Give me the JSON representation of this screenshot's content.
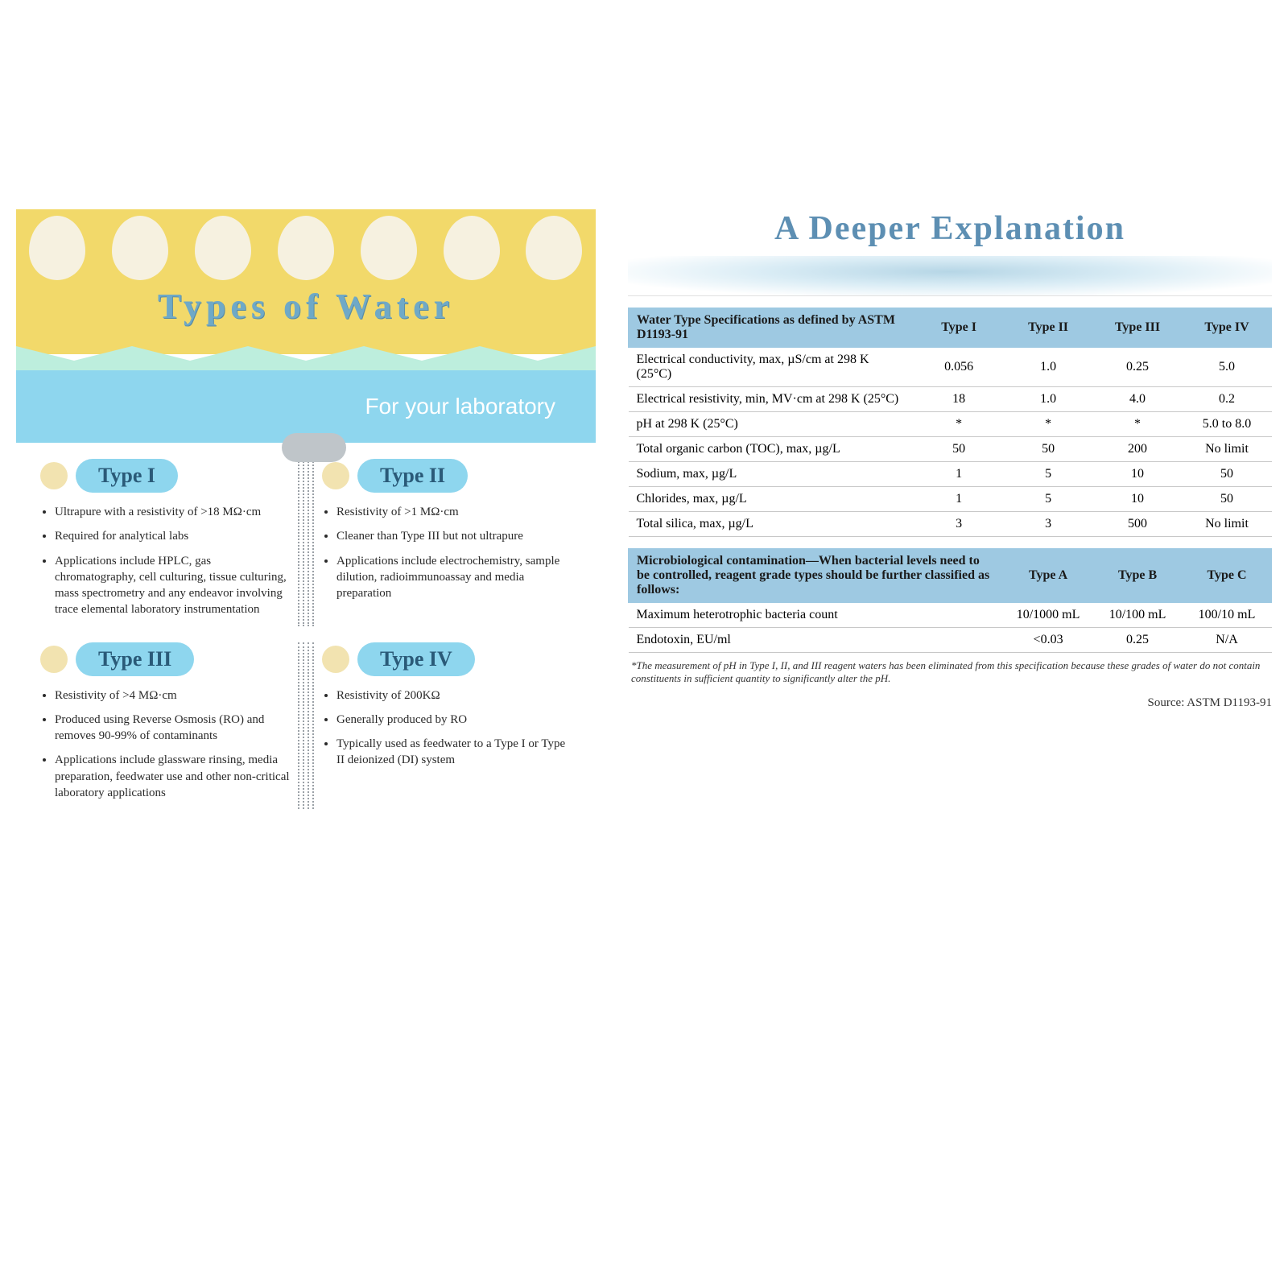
{
  "colors": {
    "banner_yellow": "#f2d96a",
    "banner_blue": "#8ed6ee",
    "mint": "#bdeedd",
    "pill_bg": "#8ed6ee",
    "pill_text": "#2a5a78",
    "table_header": "#9ec9e2",
    "title_color": "#6fa9c7",
    "right_title_color": "#5d8fb3",
    "dot": "#f2e3b0"
  },
  "left": {
    "title": "Types of Water",
    "subtitle": "For your laboratory",
    "types": [
      {
        "label": "Type I",
        "bullets": [
          "Ultrapure with a resistivity of >18 MΩ·cm",
          "Required for analytical labs",
          "Applications include HPLC, gas chromatography, cell culturing, tissue culturing, mass spectrometry and any endeavor involving trace elemental laboratory instrumentation"
        ]
      },
      {
        "label": "Type II",
        "bullets": [
          "Resistivity of >1 MΩ·cm",
          "Cleaner than Type III but not ultrapure",
          "Applications include electrochemistry, sample dilution, radioimmunoassay and media preparation"
        ]
      },
      {
        "label": "Type III",
        "bullets": [
          "Resistivity of >4 MΩ·cm",
          "Produced using Reverse Osmosis (RO) and removes 90-99% of contaminants",
          "Applications include glassware rinsing, media preparation, feedwater use and other non-critical laboratory applications"
        ]
      },
      {
        "label": "Type IV",
        "bullets": [
          "Resistivity of 200KΩ",
          "Generally produced by RO",
          "Typically used as feedwater to a Type I or Type II deionized (DI) system"
        ]
      }
    ]
  },
  "right": {
    "title": "A Deeper Explanation",
    "table1": {
      "header_label": "Water Type Specifications as defined by ASTM D1193-91",
      "columns": [
        "Type I",
        "Type II",
        "Type III",
        "Type IV"
      ],
      "rows": [
        {
          "param": "Electrical conductivity, max, µS/cm at 298 K (25°C)",
          "vals": [
            "0.056",
            "1.0",
            "0.25",
            "5.0"
          ]
        },
        {
          "param": "Electrical resistivity, min, MV·cm at 298 K (25°C)",
          "vals": [
            "18",
            "1.0",
            "4.0",
            "0.2"
          ]
        },
        {
          "param": "pH at 298 K (25°C)",
          "vals": [
            "*",
            "*",
            "*",
            "5.0 to 8.0"
          ]
        },
        {
          "param": "Total organic carbon (TOC), max, µg/L",
          "vals": [
            "50",
            "50",
            "200",
            "No limit"
          ]
        },
        {
          "param": "Sodium, max, µg/L",
          "vals": [
            "1",
            "5",
            "10",
            "50"
          ]
        },
        {
          "param": "Chlorides, max, µg/L",
          "vals": [
            "1",
            "5",
            "10",
            "50"
          ]
        },
        {
          "param": "Total silica, max, µg/L",
          "vals": [
            "3",
            "3",
            "500",
            "No limit"
          ]
        }
      ]
    },
    "table2": {
      "header_label": "Microbiological contamination—When bacterial levels need to be controlled, reagent grade types should be further classified as follows:",
      "columns": [
        "Type A",
        "Type B",
        "Type C"
      ],
      "rows": [
        {
          "param": "Maximum heterotrophic bacteria count",
          "vals": [
            "10/1000 mL",
            "10/100 mL",
            "100/10 mL"
          ]
        },
        {
          "param": "Endotoxin, EU/ml",
          "vals": [
            "<0.03",
            "0.25",
            "N/A"
          ]
        }
      ]
    },
    "footnote": "*The measurement of pH in Type I, II, and III reagent waters has been eliminated from this specification because these grades of water do not contain constituents in sufficient quantity to significantly alter the pH.",
    "source": "Source: ASTM D1193-91"
  }
}
